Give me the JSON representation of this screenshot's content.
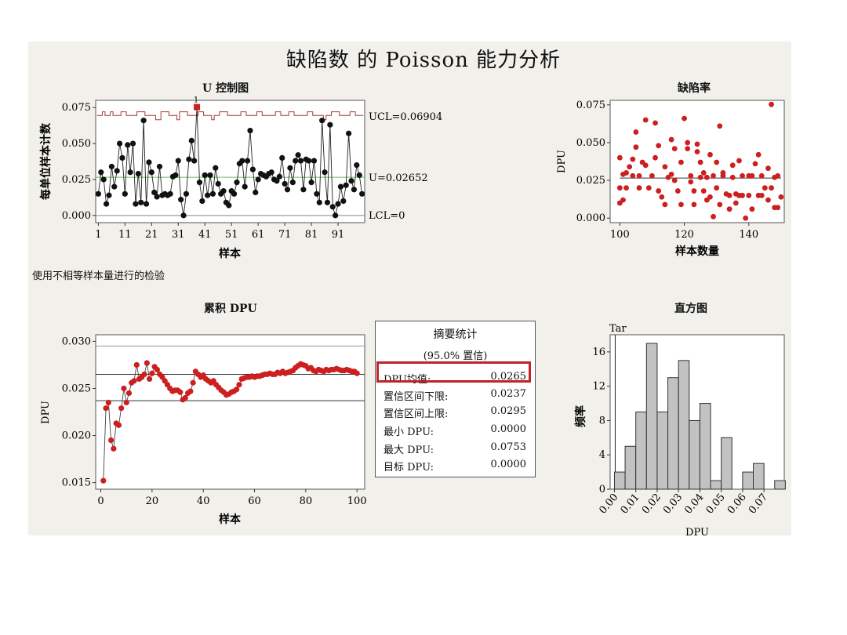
{
  "title": "缺陷数 的 Poisson 能力分析",
  "note": "使用不相等样本量进行的检验",
  "colors": {
    "points_red": "#cc1f1f",
    "points_black": "#111111",
    "limit_red": "#a33a3a",
    "center_green": "#6cb86c",
    "bar_gray": "#c2c2c2",
    "highlight": "#c0222a"
  },
  "summary": {
    "title": "摘要统计",
    "subtitle": "(95.0% 置信)",
    "rows": [
      {
        "label": "DPU均值:",
        "value": "0.0265"
      },
      {
        "label": "置信区间下限:",
        "value": "0.0237"
      },
      {
        "label": "置信区间上限:",
        "value": "0.0295"
      },
      {
        "label": "最小 DPU:",
        "value": "0.0000"
      },
      {
        "label": "最大 DPU:",
        "value": "0.0753"
      },
      {
        "label": "目标 DPU:",
        "value": "0.0000"
      }
    ]
  },
  "chart_data": [
    {
      "id": "u_chart",
      "type": "line",
      "title": "U 控制图",
      "xlabel": "样本",
      "ylabel": "每单位样本计数",
      "xticks": [
        "1",
        "11",
        "21",
        "31",
        "41",
        "51",
        "61",
        "71",
        "81",
        "91"
      ],
      "yticks": [
        "0.000",
        "0.025",
        "0.050",
        "0.075"
      ],
      "ylim": [
        -0.005,
        0.08
      ],
      "xlim": [
        0,
        101
      ],
      "limit_labels": {
        "ucl": "UCL=0.06904",
        "center": "U=0.02652",
        "lcl": "LCL=0"
      },
      "ucl": 0.06904,
      "center": 0.02652,
      "lcl": 0,
      "ucl_series": [
        0.0695,
        0.0695,
        0.072,
        0.0695,
        0.0695,
        0.072,
        0.0695,
        0.0695,
        0.0695,
        0.072,
        0.072,
        0.0695,
        0.0695,
        0.0695,
        0.0695,
        0.072,
        0.072,
        0.072,
        0.0695,
        0.0695,
        0.0695,
        0.0695,
        0.0665,
        0.0665,
        0.072,
        0.072,
        0.072,
        0.0695,
        0.0695,
        0.0695,
        0.0665,
        0.072,
        0.072,
        0.072,
        0.0695,
        0.0695,
        0.0695,
        0.0695,
        0.072,
        0.072,
        0.0695,
        0.0695,
        0.0695,
        0.0665,
        0.0695,
        0.0695,
        0.072,
        0.072,
        0.072,
        0.0695,
        0.0695,
        0.0695,
        0.0695,
        0.0695,
        0.072,
        0.072,
        0.0695,
        0.0695,
        0.0695,
        0.0695,
        0.072,
        0.072,
        0.0695,
        0.0695,
        0.0695,
        0.0695,
        0.0695,
        0.072,
        0.072,
        0.0695,
        0.0695,
        0.0695,
        0.072,
        0.072,
        0.0695,
        0.0695,
        0.0695,
        0.0695,
        0.0695,
        0.072,
        0.072,
        0.0695,
        0.0695,
        0.0695,
        0.0695,
        0.0665,
        0.0695,
        0.0695,
        0.072,
        0.072,
        0.072,
        0.0695,
        0.0695,
        0.0695,
        0.0695,
        0.072,
        0.072,
        0.0695,
        0.0695,
        0.0695
      ],
      "values": [
        0.015,
        0.03,
        0.025,
        0.008,
        0.014,
        0.034,
        0.02,
        0.031,
        0.05,
        0.04,
        0.015,
        0.049,
        0.03,
        0.05,
        0.008,
        0.029,
        0.009,
        0.066,
        0.008,
        0.037,
        0.03,
        0.016,
        0.013,
        0.034,
        0.014,
        0.015,
        0.014,
        0.015,
        0.027,
        0.028,
        0.038,
        0.011,
        0.0,
        0.015,
        0.039,
        0.052,
        0.038,
        0.0753,
        0.023,
        0.01,
        0.028,
        0.014,
        0.028,
        0.015,
        0.033,
        0.022,
        0.015,
        0.017,
        0.009,
        0.007,
        0.017,
        0.015,
        0.023,
        0.036,
        0.038,
        0.02,
        0.038,
        0.059,
        0.032,
        0.016,
        0.025,
        0.029,
        0.028,
        0.027,
        0.029,
        0.03,
        0.025,
        0.024,
        0.027,
        0.04,
        0.022,
        0.018,
        0.033,
        0.023,
        0.038,
        0.042,
        0.038,
        0.018,
        0.039,
        0.038,
        0.023,
        0.038,
        0.015,
        0.009,
        0.066,
        0.03,
        0.009,
        0.063,
        0.006,
        0.0,
        0.008,
        0.02,
        0.01,
        0.021,
        0.057,
        0.024,
        0.018,
        0.035,
        0.028,
        0.015
      ],
      "out_of_control": [
        38
      ]
    },
    {
      "id": "defect_rate",
      "type": "scatter",
      "title": "缺陷率",
      "xlabel": "样本数量",
      "ylabel": "DPU",
      "xticks": [
        "100",
        "120",
        "140"
      ],
      "yticks": [
        "0.000",
        "0.025",
        "0.050",
        "0.075"
      ],
      "xlim": [
        97,
        151
      ],
      "ylim": [
        -0.003,
        0.078
      ],
      "center": 0.02652,
      "points": [
        [
          100,
          0.04
        ],
        [
          100,
          0.02
        ],
        [
          101,
          0.029
        ],
        [
          100,
          0.01
        ],
        [
          102,
          0.03
        ],
        [
          101,
          0.012
        ],
        [
          102,
          0.02
        ],
        [
          103,
          0.034
        ],
        [
          104,
          0.028
        ],
        [
          104,
          0.039
        ],
        [
          105,
          0.057
        ],
        [
          105,
          0.047
        ],
        [
          106,
          0.028
        ],
        [
          106,
          0.02
        ],
        [
          107,
          0.037
        ],
        [
          108,
          0.065
        ],
        [
          108,
          0.035
        ],
        [
          109,
          0.02
        ],
        [
          110,
          0.028
        ],
        [
          111,
          0.063
        ],
        [
          111,
          0.04
        ],
        [
          112,
          0.048
        ],
        [
          112,
          0.018
        ],
        [
          113,
          0.014
        ],
        [
          114,
          0.034
        ],
        [
          114,
          0.009
        ],
        [
          115,
          0.027
        ],
        [
          116,
          0.052
        ],
        [
          116,
          0.029
        ],
        [
          117,
          0.046
        ],
        [
          117,
          0.025
        ],
        [
          118,
          0.018
        ],
        [
          119,
          0.037
        ],
        [
          119,
          0.009
        ],
        [
          120,
          0.066
        ],
        [
          121,
          0.05
        ],
        [
          121,
          0.046
        ],
        [
          122,
          0.028
        ],
        [
          122,
          0.024
        ],
        [
          123,
          0.018
        ],
        [
          123,
          0.009
        ],
        [
          124,
          0.049
        ],
        [
          124,
          0.044
        ],
        [
          125,
          0.037
        ],
        [
          125,
          0.027
        ],
        [
          126,
          0.03
        ],
        [
          126,
          0.018
        ],
        [
          127,
          0.027
        ],
        [
          127,
          0.012
        ],
        [
          128,
          0.042
        ],
        [
          128,
          0.014
        ],
        [
          129,
          0.028
        ],
        [
          129,
          0.001
        ],
        [
          130,
          0.02
        ],
        [
          130,
          0.037
        ],
        [
          131,
          0.061
        ],
        [
          131,
          0.009
        ],
        [
          132,
          0.028
        ],
        [
          132,
          0.03
        ],
        [
          133,
          0.016
        ],
        [
          134,
          0.015
        ],
        [
          134,
          0.006
        ],
        [
          135,
          0.035
        ],
        [
          135,
          0.027
        ],
        [
          136,
          0.016
        ],
        [
          136,
          0.01
        ],
        [
          137,
          0.038
        ],
        [
          137,
          0.015
        ],
        [
          138,
          0.028
        ],
        [
          138,
          0.015
        ],
        [
          139,
          0.0
        ],
        [
          140,
          0.028
        ],
        [
          140,
          0.015
        ],
        [
          141,
          0.028
        ],
        [
          141,
          0.006
        ],
        [
          142,
          0.036
        ],
        [
          143,
          0.042
        ],
        [
          143,
          0.015
        ],
        [
          144,
          0.028
        ],
        [
          144,
          0.015
        ],
        [
          145,
          0.02
        ],
        [
          146,
          0.033
        ],
        [
          146,
          0.012
        ],
        [
          147,
          0.0753
        ],
        [
          147,
          0.02
        ],
        [
          148,
          0.027
        ],
        [
          148,
          0.007
        ],
        [
          149,
          0.028
        ],
        [
          149,
          0.007
        ],
        [
          150,
          0.014
        ]
      ]
    },
    {
      "id": "cumulative_dpu",
      "type": "line",
      "title": "累积 DPU",
      "xlabel": "样本",
      "ylabel": "DPU",
      "xticks": [
        "0",
        "20",
        "40",
        "60",
        "80",
        "100"
      ],
      "yticks": [
        "0.015",
        "0.020",
        "0.025",
        "0.030"
      ],
      "xlim": [
        -2,
        103
      ],
      "ylim": [
        0.0143,
        0.0307
      ],
      "ref_lines": [
        0.0295,
        0.0265,
        0.0237
      ],
      "values": [
        0.0152,
        0.0229,
        0.0235,
        0.0195,
        0.0186,
        0.0213,
        0.0211,
        0.0229,
        0.025,
        0.0235,
        0.0245,
        0.0256,
        0.0258,
        0.0275,
        0.026,
        0.0262,
        0.0265,
        0.0277,
        0.026,
        0.0266,
        0.0273,
        0.027,
        0.0265,
        0.0262,
        0.0258,
        0.0254,
        0.025,
        0.0247,
        0.0248,
        0.0248,
        0.0246,
        0.0238,
        0.024,
        0.0245,
        0.0247,
        0.0256,
        0.0268,
        0.0265,
        0.0262,
        0.0264,
        0.026,
        0.0258,
        0.0256,
        0.0258,
        0.0254,
        0.0251,
        0.0248,
        0.0246,
        0.0243,
        0.0244,
        0.0246,
        0.0247,
        0.0249,
        0.0254,
        0.026,
        0.0261,
        0.0262,
        0.0262,
        0.0263,
        0.0262,
        0.0263,
        0.0263,
        0.0264,
        0.0265,
        0.0265,
        0.0266,
        0.0265,
        0.0265,
        0.0267,
        0.0266,
        0.0268,
        0.0266,
        0.0267,
        0.0268,
        0.0269,
        0.0272,
        0.0274,
        0.0276,
        0.0275,
        0.0274,
        0.0271,
        0.0272,
        0.0269,
        0.0268,
        0.027,
        0.0269,
        0.0268,
        0.027,
        0.0269,
        0.027,
        0.027,
        0.0271,
        0.027,
        0.0269,
        0.0269,
        0.027,
        0.0269,
        0.0268,
        0.0268,
        0.0266
      ]
    },
    {
      "id": "histogram",
      "type": "bar",
      "title": "直方图",
      "xlabel": "DPU",
      "ylabel": "频率",
      "target_label": "Tar",
      "xticks": [
        "0.00",
        "0.01",
        "0.02",
        "0.03",
        "0.04",
        "0.05",
        "0.06",
        "0.07"
      ],
      "yticks": [
        "0",
        "4",
        "8",
        "12",
        "16"
      ],
      "bin_width": 0.005,
      "bin_starts": [
        0.0,
        0.005,
        0.01,
        0.015,
        0.02,
        0.025,
        0.03,
        0.035,
        0.04,
        0.045,
        0.05,
        0.055,
        0.06,
        0.065,
        0.07,
        0.075
      ],
      "values": [
        2,
        5,
        9,
        17,
        9,
        13,
        15,
        8,
        10,
        1,
        6,
        0,
        2,
        3,
        0,
        1
      ],
      "xlim": [
        -0.002,
        0.0795
      ],
      "ylim": [
        0,
        18
      ]
    }
  ]
}
